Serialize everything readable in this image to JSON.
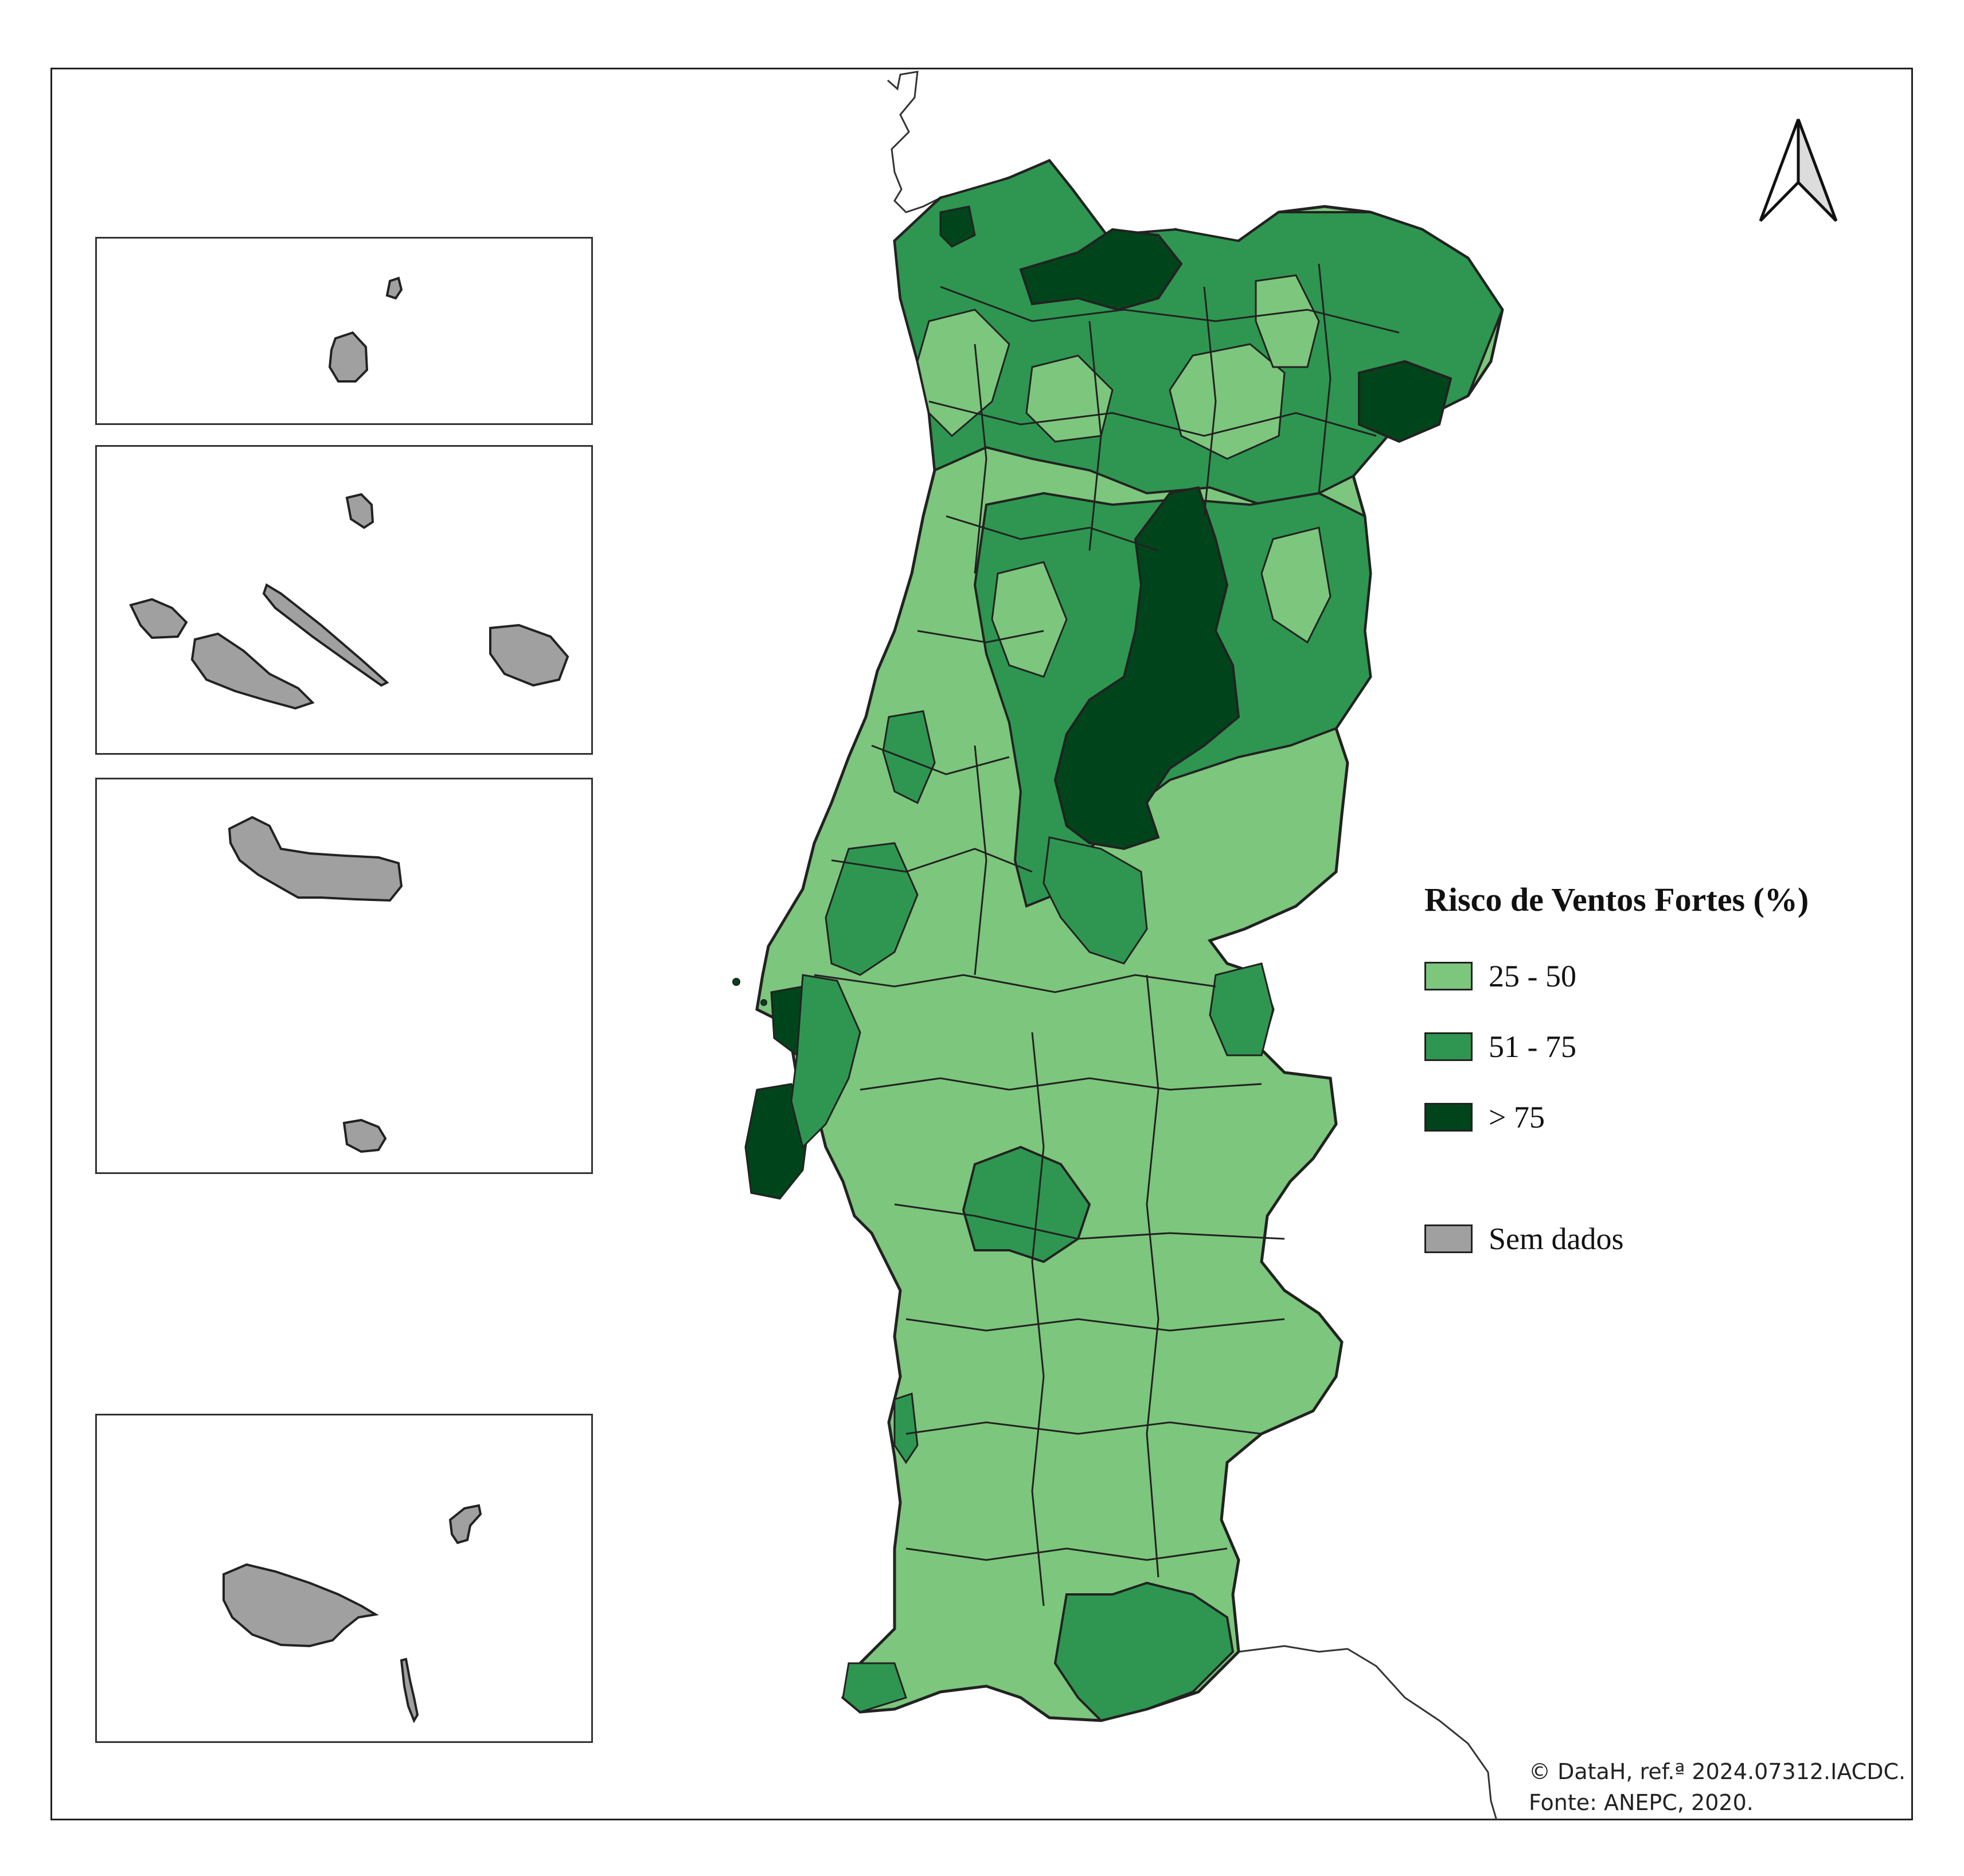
{
  "legend": {
    "title": "Risco de Ventos Fortes (%)",
    "classes": [
      {
        "label": "25 - 50",
        "color": "#7dc67d"
      },
      {
        "label": "51 - 75",
        "color": "#2e9650"
      },
      {
        "label": "> 75",
        "color": "#00441b"
      }
    ],
    "no_data": {
      "label": "Sem dados",
      "color": "#a0a0a0"
    }
  },
  "credits": {
    "line1": "© DataH, ref.ª 2024.07312.IACDC.",
    "line2": "Fonte:  ANEPC, 2020."
  },
  "map": {
    "north_arrow": "north-arrow-icon",
    "insets": [
      "azores-western-group",
      "azores-central-group",
      "azores-eastern-group",
      "madeira-archipelago"
    ]
  }
}
